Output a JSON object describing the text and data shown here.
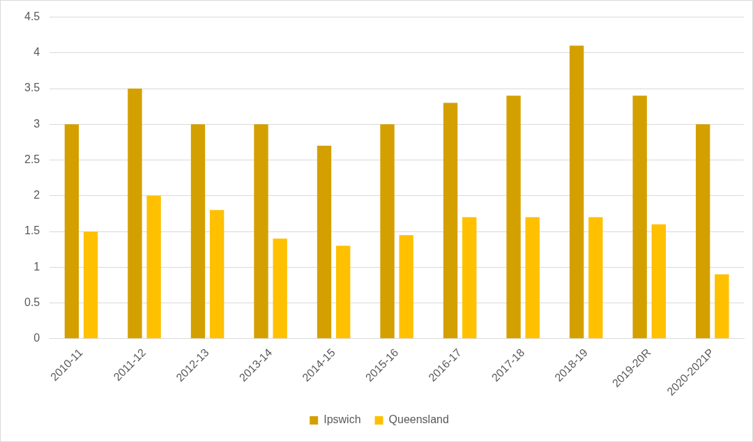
{
  "chart_data": {
    "type": "bar",
    "categories": [
      "2010-11",
      "2011-12",
      "2012-13",
      "2013-14",
      "2014-15",
      "2015-16",
      "2016-17",
      "2017-18",
      "2018-19",
      "2019-20R",
      "2020-2021P"
    ],
    "series": [
      {
        "name": "Ipswich",
        "color": "#d4a000",
        "values": [
          3,
          3.5,
          3,
          3,
          2.7,
          3,
          3.3,
          3.4,
          4.1,
          3.4,
          3
        ]
      },
      {
        "name": "Queensland",
        "color": "#ffc000",
        "values": [
          1.5,
          2,
          1.8,
          1.4,
          1.3,
          1.45,
          1.7,
          1.7,
          1.7,
          1.6,
          0.9
        ]
      }
    ],
    "ylim": [
      0,
      4.5
    ],
    "yticks": [
      0,
      0.5,
      1,
      1.5,
      2,
      2.5,
      3,
      3.5,
      4,
      4.5
    ],
    "grid": "y",
    "legend": "bottom"
  }
}
